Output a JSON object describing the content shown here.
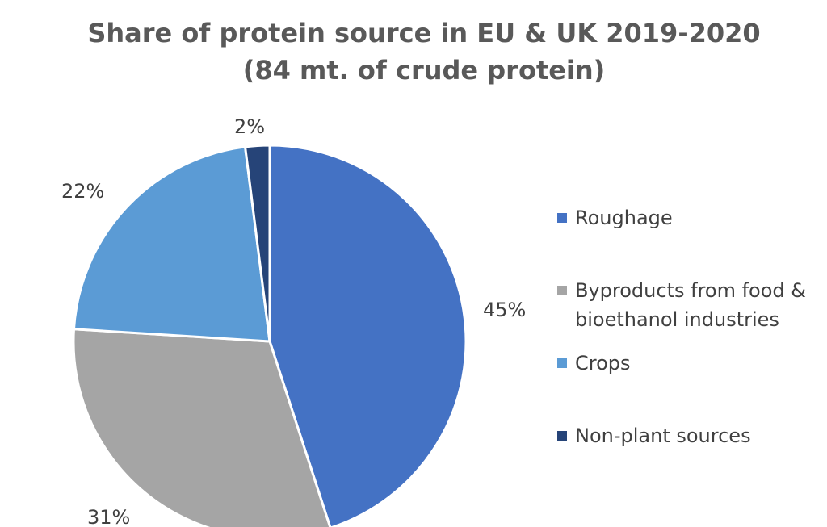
{
  "chart_data": {
    "type": "pie",
    "title": "Share of protein source in EU & UK 2019-2020",
    "subtitle": "(84 mt. of crude protein)",
    "categories": [
      "Roughage",
      "Byproducts from food & bioethanol industries",
      "Crops",
      "Non-plant sources"
    ],
    "legend_labels": [
      "Roughage",
      "Byproducts from food &\nbioethanol industries",
      "Crops",
      "Non-plant sources"
    ],
    "values": [
      45,
      31,
      22,
      2
    ],
    "data_labels": [
      "45%",
      "31%",
      "22%",
      "2%"
    ],
    "colors": [
      "#4472C4",
      "#A5A5A5",
      "#5B9BD5",
      "#264478"
    ],
    "legend_placement": "right",
    "grid": false
  }
}
